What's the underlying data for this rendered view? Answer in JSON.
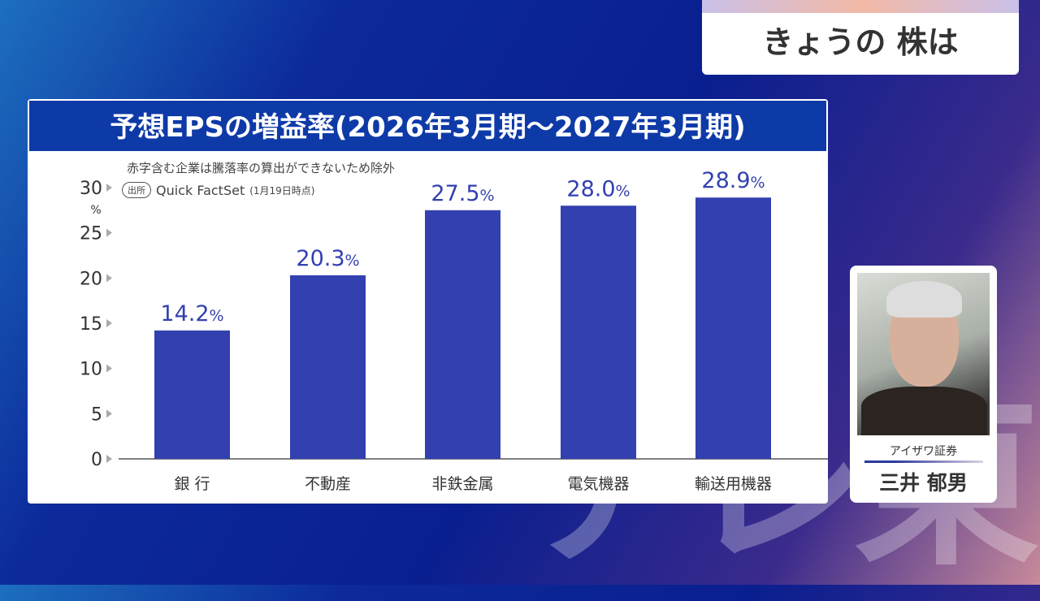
{
  "header": {
    "title": "きょうの 株は"
  },
  "watermark": "テレ東",
  "chart_data": {
    "type": "bar",
    "title": "予想EPSの増益率(2026年3月期〜2027年3月期)",
    "note": "赤字含む企業は騰落率の算出ができないため除外",
    "source_badge": "出所",
    "source": "Quick FactSet",
    "source_date": "(1月19日時点)",
    "ylabel": "%",
    "ylim": [
      0,
      30
    ],
    "yticks": [
      "0",
      "5",
      "10",
      "15",
      "20",
      "25",
      "30"
    ],
    "categories": [
      "銀 行",
      "不動産",
      "非鉄金属",
      "電気機器",
      "輸送用機器"
    ],
    "values": [
      14.2,
      20.3,
      27.5,
      28.0,
      28.9
    ],
    "labels": [
      "14.2",
      "20.3",
      "27.5",
      "28.0",
      "28.9"
    ],
    "unit": "%",
    "bar_color": "#3340b0"
  },
  "commentator": {
    "firm": "アイザワ証券",
    "name": "三井 郁男"
  }
}
